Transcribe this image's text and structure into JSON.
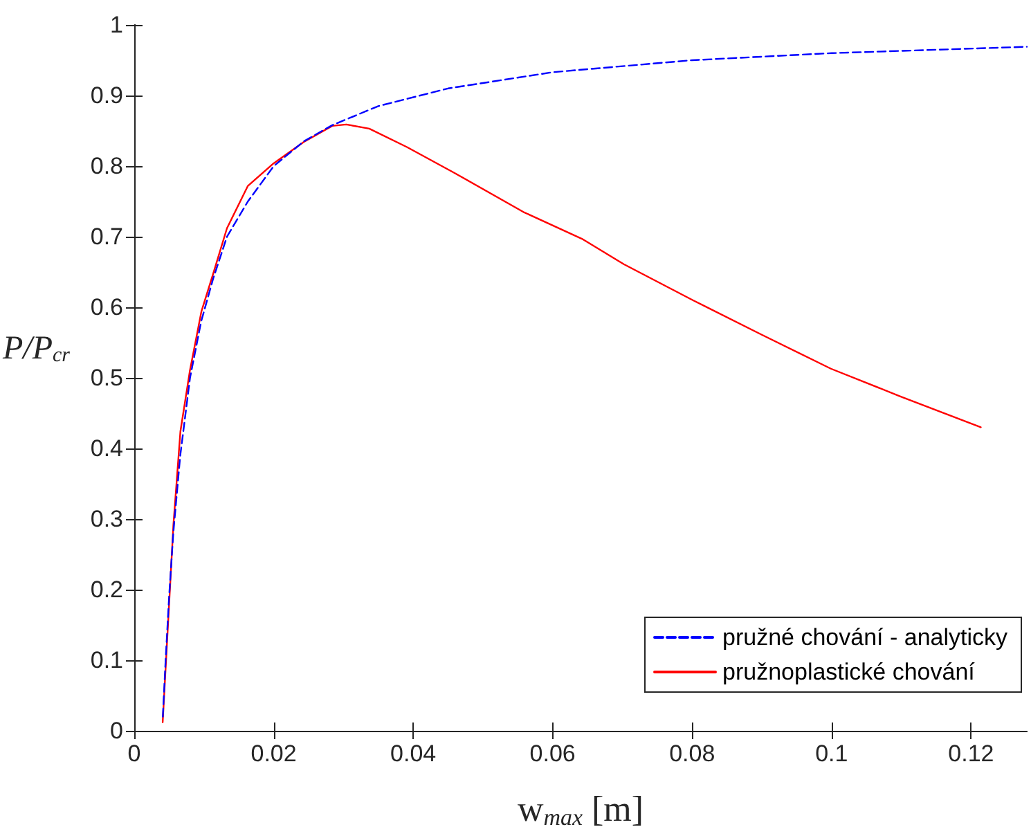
{
  "chart_data": {
    "type": "line",
    "xlabel": "w$_{max}$ [m]",
    "ylabel": "P/P$_{cr}$",
    "xlim": [
      0,
      0.128
    ],
    "xticks": [
      0,
      0.02,
      0.04,
      0.06,
      0.08,
      0.1,
      0.12
    ],
    "ylim": [
      0,
      1
    ],
    "yticks": [
      0,
      0.1,
      0.2,
      0.3,
      0.4,
      0.5,
      0.6,
      0.7,
      0.8,
      0.9,
      1
    ],
    "grid": false,
    "legend": "bottom right",
    "marker": "none",
    "series": [
      {
        "name": "pružné chování - analyticky",
        "color": "#0000ff",
        "line_style": "dashed",
        "x": [
          0.0041,
          0.0045,
          0.005,
          0.0056,
          0.0066,
          0.008,
          0.0096,
          0.0113,
          0.0133,
          0.0163,
          0.02,
          0.0243,
          0.0284,
          0.035,
          0.045,
          0.06,
          0.08,
          0.1,
          0.128
        ],
        "values": [
          0.02,
          0.1,
          0.19,
          0.28,
          0.39,
          0.5,
          0.58,
          0.64,
          0.7,
          0.75,
          0.8,
          0.835,
          0.858,
          0.885,
          0.91,
          0.933,
          0.95,
          0.96,
          0.969
        ]
      },
      {
        "name": "pružnoplastické chování",
        "color": "#ff0000",
        "line_style": "solid",
        "x": [
          0.00408,
          0.00562,
          0.00662,
          0.00796,
          0.00963,
          0.0113,
          0.0133,
          0.0163,
          0.02,
          0.0243,
          0.0284,
          0.0304,
          0.0337,
          0.0391,
          0.0458,
          0.0558,
          0.0642,
          0.0702,
          0.0801,
          0.09,
          0.0999,
          0.1098,
          0.1214
        ],
        "values": [
          0.012,
          0.292,
          0.424,
          0.509,
          0.594,
          0.647,
          0.712,
          0.772,
          0.804,
          0.834,
          0.857,
          0.859,
          0.853,
          0.827,
          0.791,
          0.735,
          0.697,
          0.661,
          0.61,
          0.561,
          0.513,
          0.474,
          0.43
        ]
      }
    ]
  }
}
